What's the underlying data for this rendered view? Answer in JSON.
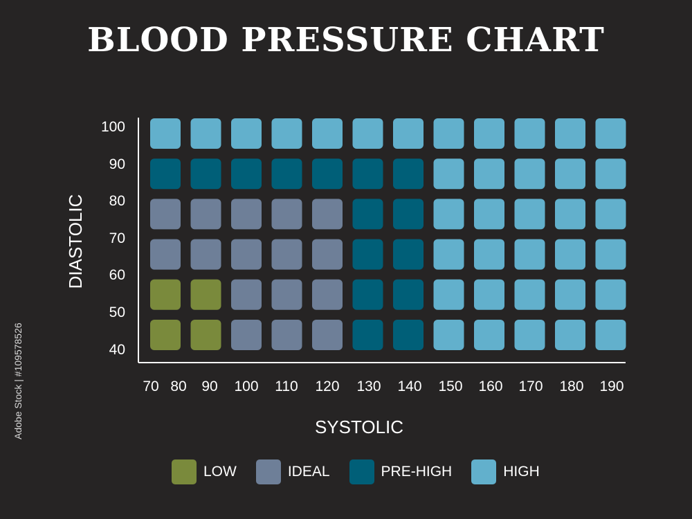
{
  "chart_data": {
    "type": "heatmap",
    "title": "BLOOD PRESSURE CHART",
    "xlabel": "SYSTOLIC",
    "ylabel": "DIASTOLIC",
    "x_ticks": [
      "70",
      "80",
      "90",
      "100",
      "110",
      "120",
      "130",
      "140",
      "150",
      "160",
      "170",
      "180",
      "190"
    ],
    "y_ticks": [
      "100",
      "90",
      "80",
      "70",
      "60",
      "50",
      "40"
    ],
    "columns": [
      "80",
      "90",
      "100",
      "110",
      "120",
      "130",
      "140",
      "150",
      "160",
      "170",
      "180",
      "190"
    ],
    "rows": [
      "100",
      "90",
      "80",
      "70",
      "60",
      "50"
    ],
    "categories": [
      {
        "key": "low",
        "label": "LOW",
        "color": "#7a8a3c"
      },
      {
        "key": "ideal",
        "label": "IDEAL",
        "color": "#6e7f98"
      },
      {
        "key": "prehigh",
        "label": "PRE-HIGH",
        "color": "#005f78"
      },
      {
        "key": "high",
        "label": "HIGH",
        "color": "#62b0cc"
      }
    ],
    "cells": [
      [
        "high",
        "high",
        "high",
        "high",
        "high",
        "high",
        "high",
        "high",
        "high",
        "high",
        "high",
        "high"
      ],
      [
        "prehigh",
        "prehigh",
        "prehigh",
        "prehigh",
        "prehigh",
        "prehigh",
        "prehigh",
        "high",
        "high",
        "high",
        "high",
        "high"
      ],
      [
        "ideal",
        "ideal",
        "ideal",
        "ideal",
        "ideal",
        "prehigh",
        "prehigh",
        "high",
        "high",
        "high",
        "high",
        "high"
      ],
      [
        "ideal",
        "ideal",
        "ideal",
        "ideal",
        "ideal",
        "prehigh",
        "prehigh",
        "high",
        "high",
        "high",
        "high",
        "high"
      ],
      [
        "low",
        "low",
        "ideal",
        "ideal",
        "ideal",
        "prehigh",
        "prehigh",
        "high",
        "high",
        "high",
        "high",
        "high"
      ],
      [
        "low",
        "low",
        "ideal",
        "ideal",
        "ideal",
        "prehigh",
        "prehigh",
        "high",
        "high",
        "high",
        "high",
        "high"
      ]
    ],
    "legend_position": "bottom",
    "background": "#262424"
  },
  "watermark": "Adobe Stock | #109578526"
}
